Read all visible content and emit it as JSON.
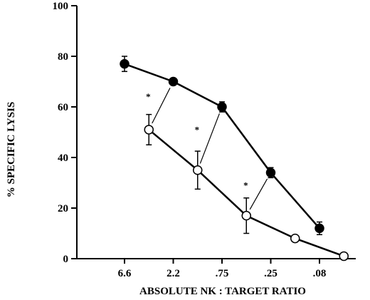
{
  "chart_data": {
    "type": "line",
    "title": "",
    "xlabel": "ABSOLUTE NK : TARGET RATIO",
    "ylabel": "% SPECIFIC LYSIS",
    "ylim": [
      0,
      100
    ],
    "yticks": [
      "0",
      "20",
      "40",
      "60",
      "80",
      "100"
    ],
    "categories": [
      "6.6",
      "2.2",
      ".75",
      ".25",
      ".08"
    ],
    "grid": false,
    "legend": "none",
    "series": [
      {
        "marker": "filled-circle",
        "color": "#000000",
        "x": [
          "6.6",
          "2.2",
          ".75",
          ".25",
          ".08"
        ],
        "y": [
          77,
          70,
          60,
          34,
          12
        ],
        "err": [
          3,
          1,
          2,
          2,
          2.5
        ]
      },
      {
        "marker": "open-circle",
        "color": "#000000",
        "x_offset": 0.5,
        "y": [
          51,
          35,
          17,
          8,
          1
        ],
        "err": [
          6,
          7.5,
          7,
          1,
          0
        ]
      }
    ],
    "annotations": [
      {
        "text": "*",
        "between_x": [
          "6.6",
          "2.2"
        ]
      },
      {
        "text": "*",
        "between_x": [
          "2.2",
          ".75"
        ]
      },
      {
        "text": "*",
        "between_x": [
          ".75",
          ".25"
        ]
      }
    ]
  }
}
